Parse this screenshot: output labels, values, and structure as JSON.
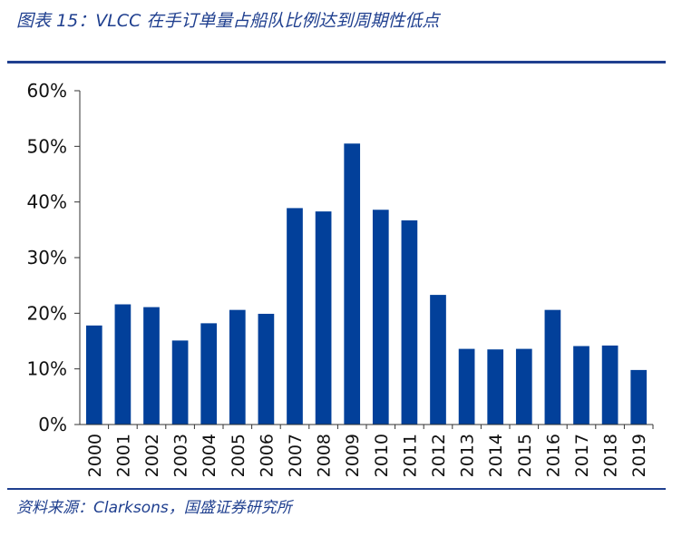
{
  "figure": {
    "title": "图表 15：VLCC 在手订单量占船队比例达到周期性低点",
    "source": "资料来源：Clarksons，国盛证券研究所"
  },
  "colors": {
    "bar": "#02409a",
    "accent": "#1f3f8f",
    "axis": "#333333"
  },
  "chart_data": {
    "type": "bar",
    "title": "VLCC 在手订单量占船队比例达到周期性低点",
    "xlabel": "",
    "ylabel": "",
    "ylim": [
      0,
      60
    ],
    "yticks": [
      0,
      10,
      20,
      30,
      40,
      50,
      60
    ],
    "ytick_labels": [
      "0%",
      "10%",
      "20%",
      "30%",
      "40%",
      "50%",
      "60%"
    ],
    "categories": [
      "2000",
      "2001",
      "2002",
      "2003",
      "2004",
      "2005",
      "2006",
      "2007",
      "2008",
      "2009",
      "2010",
      "2011",
      "2012",
      "2013",
      "2014",
      "2015",
      "2016",
      "2017",
      "2018",
      "2019"
    ],
    "series": [
      {
        "name": "VLCC 在手订单量占船队比例",
        "values": [
          17.8,
          21.6,
          21.1,
          15.1,
          18.2,
          20.6,
          19.9,
          38.9,
          38.3,
          50.5,
          38.6,
          36.7,
          23.3,
          13.6,
          13.5,
          13.6,
          20.6,
          14.1,
          14.2,
          9.8
        ]
      }
    ],
    "grid": false,
    "legend": "none"
  }
}
